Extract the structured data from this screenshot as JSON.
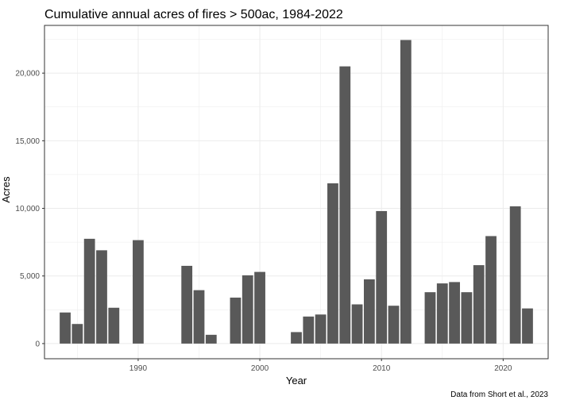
{
  "chart_data": {
    "type": "bar",
    "title": "Cumulative annual acres of fires > 500ac, 1984-2022",
    "xlabel": "Year",
    "ylabel": "Acres",
    "caption": "Data from Short et al., 2023",
    "x": [
      1984,
      1985,
      1986,
      1987,
      1988,
      1990,
      1994,
      1995,
      1996,
      1998,
      1999,
      2000,
      2003,
      2004,
      2005,
      2006,
      2007,
      2008,
      2009,
      2010,
      2011,
      2012,
      2014,
      2015,
      2016,
      2017,
      2018,
      2019,
      2021,
      2022
    ],
    "values": [
      2300,
      1450,
      7750,
      6900,
      2650,
      7650,
      5750,
      3950,
      650,
      3400,
      5050,
      5300,
      850,
      2000,
      2150,
      11850,
      20500,
      2900,
      4750,
      9800,
      2800,
      22450,
      3800,
      4450,
      4550,
      3800,
      5800,
      7950,
      10150,
      2600
    ],
    "xlim": [
      1982.3,
      2023.7
    ],
    "ylim": [
      -1120,
      23530
    ],
    "xticks": [
      1990,
      2000,
      2010,
      2020
    ],
    "xtick_labels": [
      "1990",
      "2000",
      "2010",
      "2020"
    ],
    "yticks": [
      0,
      5000,
      10000,
      15000,
      20000
    ],
    "ytick_labels": [
      "0",
      "5,000",
      "10,000",
      "15,000",
      "20,000"
    ],
    "bar_color": "#595959",
    "grid": true,
    "grid_color": "#ebebeb",
    "panel_border_color": "#333333"
  }
}
